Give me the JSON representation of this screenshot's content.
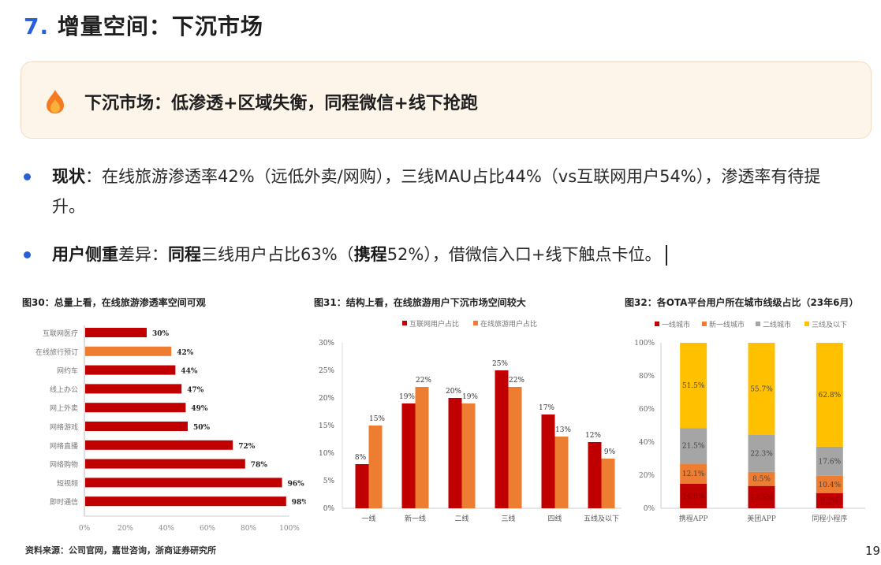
{
  "header": {
    "number": "7.",
    "title": "增量空间：下沉市场"
  },
  "callout": {
    "icon": "flame-icon",
    "text": "下沉市场：低渗透+区域失衡，同程微信+线下抢跑"
  },
  "bullets": [
    {
      "bold": "现状",
      "rest": "：在线旅游渗透率42%（远低外卖/网购），三线MAU占比44%（vs互联网用户54%），渗透率有待提升。"
    },
    {
      "bold1": "用户侧重",
      "mid1": "差异：",
      "bold2": "同程",
      "mid2": "三线用户占比63%（",
      "bold3": "携程",
      "rest": "52%），借微信入口+线下触点卡位。"
    }
  ],
  "colors": {
    "accent": "#2a5fd6",
    "red": "#c00000",
    "orange": "#ed7d31",
    "gray": "#a5a5a5",
    "yellow": "#ffc000"
  },
  "chart_data": [
    {
      "id": "fig30",
      "type": "bar",
      "orientation": "horizontal",
      "title": "图30：总量上看，在线旅游渗透率空间可观",
      "categories": [
        "互联网医疗",
        "在线旅行预订",
        "网约车",
        "线上办公",
        "网上外卖",
        "网络游戏",
        "网络直播",
        "网络购物",
        "短视频",
        "即时通信"
      ],
      "values": [
        30,
        42,
        44,
        47,
        49,
        50,
        72,
        78,
        96,
        98
      ],
      "highlight_index": 1,
      "xticks": [
        "0%",
        "20%",
        "40%",
        "60%",
        "80%",
        "100%"
      ],
      "xlim": [
        0,
        100
      ],
      "unit": "%"
    },
    {
      "id": "fig31",
      "type": "bar",
      "title": "图31：结构上看，在线旅游用户下沉市场空间较大",
      "categories": [
        "一线",
        "新一线",
        "二线",
        "三线",
        "四线",
        "五线及以下"
      ],
      "series": [
        {
          "name": "互联网用户占比",
          "values": [
            8,
            19,
            20,
            25,
            17,
            12
          ]
        },
        {
          "name": "在线旅游用户占比",
          "values": [
            15,
            22,
            19,
            22,
            13,
            9
          ]
        }
      ],
      "yticks": [
        "0%",
        "5%",
        "10%",
        "15%",
        "20%",
        "25%",
        "30%"
      ],
      "ylim": [
        0,
        30
      ],
      "legend_position": "top",
      "unit": "%"
    },
    {
      "id": "fig32",
      "type": "bar",
      "stacked": true,
      "title": "图32：各OTA平台用户所在城市线级占比（23年6月）",
      "categories": [
        "携程APP",
        "美团APP",
        "同程小程序"
      ],
      "series": [
        {
          "name": "一线城市",
          "values": [
            14.9,
            13.5,
            9.2
          ]
        },
        {
          "name": "新一线城市",
          "values": [
            12.1,
            8.5,
            10.4
          ]
        },
        {
          "name": "二线城市",
          "values": [
            21.5,
            22.3,
            17.6
          ]
        },
        {
          "name": "三线及以下",
          "values": [
            51.5,
            55.7,
            62.8
          ]
        }
      ],
      "yticks": [
        "0%",
        "20%",
        "40%",
        "60%",
        "80%",
        "100%"
      ],
      "ylim": [
        0,
        100
      ],
      "legend_position": "top",
      "unit": "%"
    }
  ],
  "footer": {
    "source": "资料来源：公司官网，嘉世咨询，浙商证券研究所",
    "page": "19"
  }
}
